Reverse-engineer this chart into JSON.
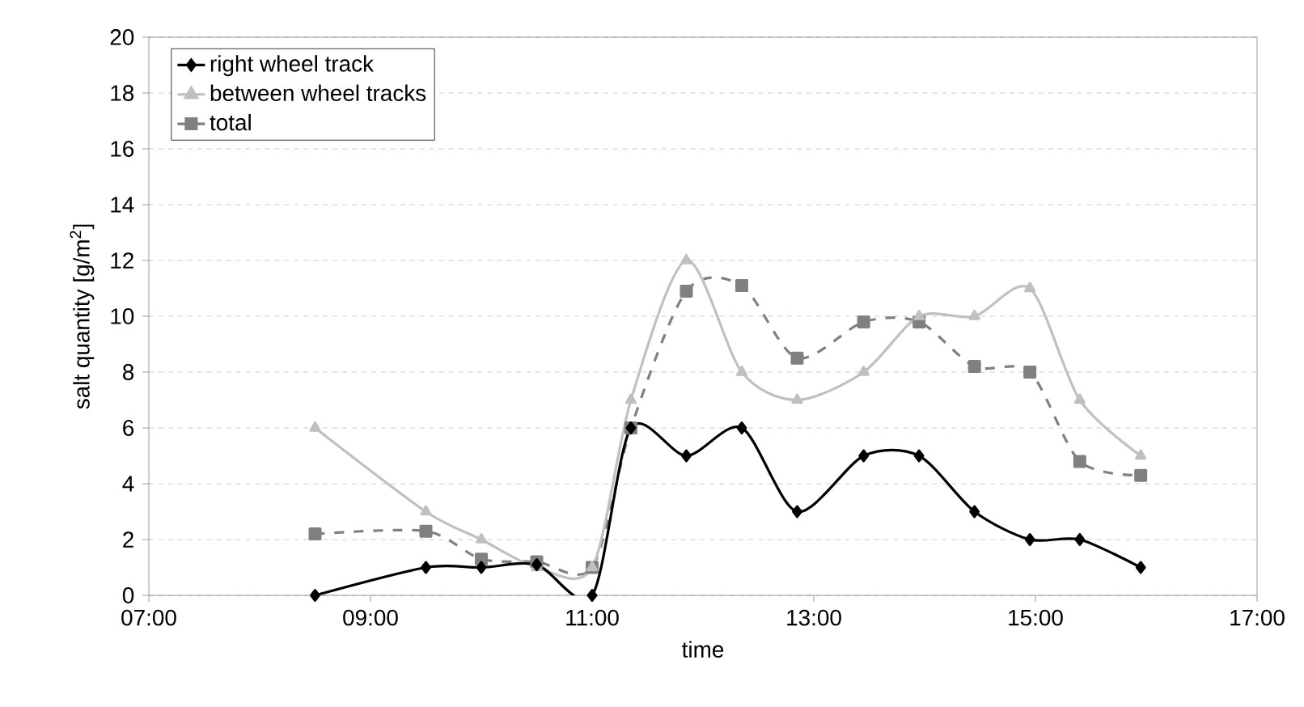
{
  "chart_data": {
    "type": "line",
    "xlabel": "time",
    "ylabel": "salt quantity [g/m$^{2}$]",
    "x": [
      8.5,
      9.5,
      10,
      10.5,
      11,
      11.35,
      11.85,
      12.35,
      12.85,
      13.45,
      13.95,
      14.45,
      14.95,
      15.4,
      15.95
    ],
    "series": [
      {
        "name": "right wheel track",
        "color": "#000000",
        "marker": "diamond",
        "line_style": "solid",
        "values": [
          0,
          1,
          1,
          1.1,
          0,
          6,
          5,
          6,
          3,
          5,
          5,
          3,
          2,
          2,
          1
        ]
      },
      {
        "name": "between wheel tracks",
        "color": "#c0c0c0",
        "marker": "triangle",
        "line_style": "solid",
        "values": [
          6,
          3,
          2,
          1,
          1,
          7,
          12,
          8,
          7,
          8,
          10,
          10,
          11,
          7,
          5
        ]
      },
      {
        "name": "total",
        "color": "#808080",
        "marker": "square",
        "line_style": "dashed",
        "values": [
          2.2,
          2.3,
          1.3,
          1.2,
          1,
          6,
          10.9,
          11.1,
          8.5,
          9.8,
          9.8,
          8.2,
          8,
          4.8,
          4.3
        ]
      }
    ],
    "xlim": [
      7,
      17
    ],
    "xticks": [
      {
        "value": 7,
        "label": "07:00"
      },
      {
        "value": 9,
        "label": "09:00"
      },
      {
        "value": 11,
        "label": "11:00"
      },
      {
        "value": 13,
        "label": "13:00"
      },
      {
        "value": 15,
        "label": "15:00"
      },
      {
        "value": 17,
        "label": "17:00"
      }
    ],
    "ylim": [
      0,
      20
    ],
    "yticks": [
      0,
      2,
      4,
      6,
      8,
      10,
      12,
      14,
      16,
      18,
      20
    ],
    "grid": "y",
    "legend": "top left"
  }
}
